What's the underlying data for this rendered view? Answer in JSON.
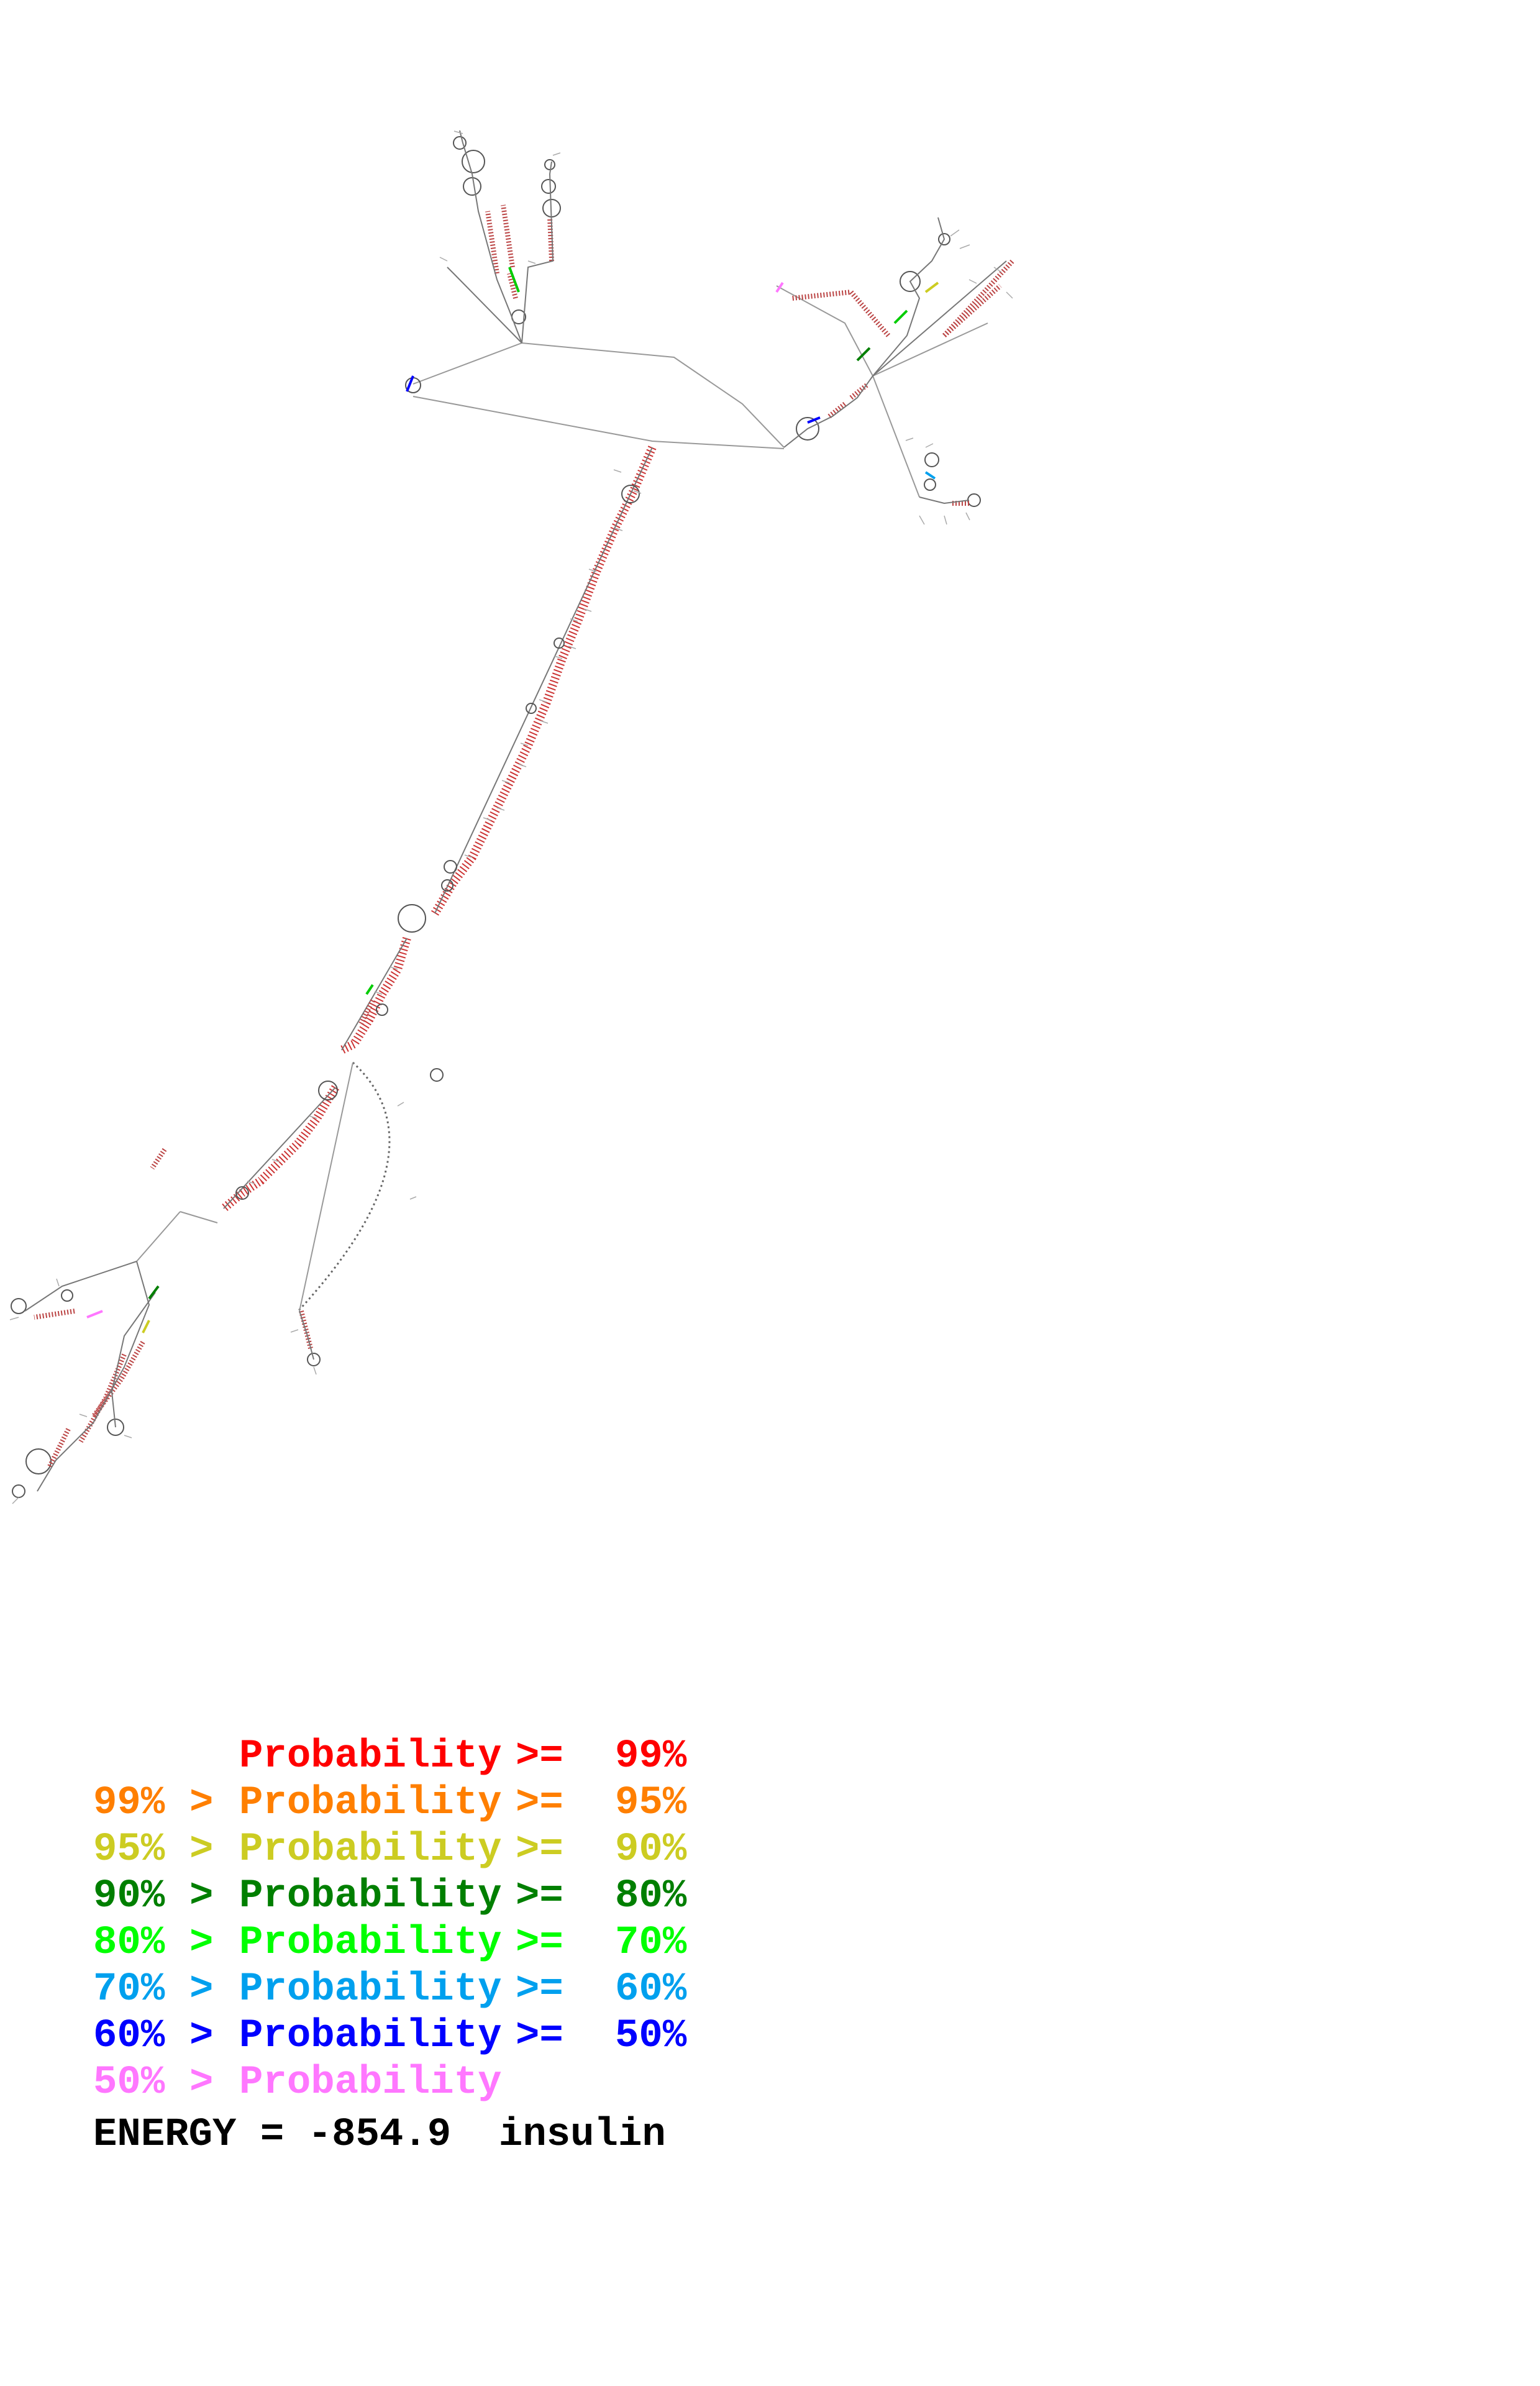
{
  "legend": [
    {
      "lower": "",
      "label": "Probability",
      "op_lower": "",
      "op_upper": ">=",
      "upper": "99%",
      "color": "#ff0000"
    },
    {
      "lower": "99%",
      "label": "Probability",
      "op_lower": ">",
      "op_upper": ">=",
      "upper": "95%",
      "color": "#ff7f00"
    },
    {
      "lower": "95%",
      "label": "Probability",
      "op_lower": ">",
      "op_upper": ">=",
      "upper": "90%",
      "color": "#cccc22"
    },
    {
      "lower": "90%",
      "label": "Probability",
      "op_lower": ">",
      "op_upper": ">=",
      "upper": "80%",
      "color": "#007f00"
    },
    {
      "lower": "80%",
      "label": "Probability",
      "op_lower": ">",
      "op_upper": ">=",
      "upper": "70%",
      "color": "#00ff00"
    },
    {
      "lower": "70%",
      "label": "Probability",
      "op_lower": ">",
      "op_upper": ">=",
      "upper": "60%",
      "color": "#00a0ee"
    },
    {
      "lower": "60%",
      "label": "Probability",
      "op_lower": ">",
      "op_upper": ">=",
      "upper": "50%",
      "color": "#0000ff"
    },
    {
      "lower": "50%",
      "label": "Probability",
      "op_lower": ">",
      "op_upper": "",
      "upper": "",
      "color": "#ff77ff"
    }
  ],
  "energy": {
    "label": "ENERGY = ",
    "value": "-854.9",
    "name": "insulin"
  },
  "colors": {
    "backbone": "#999999",
    "loop_outline": "#555555",
    "pair_dominant": "#cc2222"
  }
}
